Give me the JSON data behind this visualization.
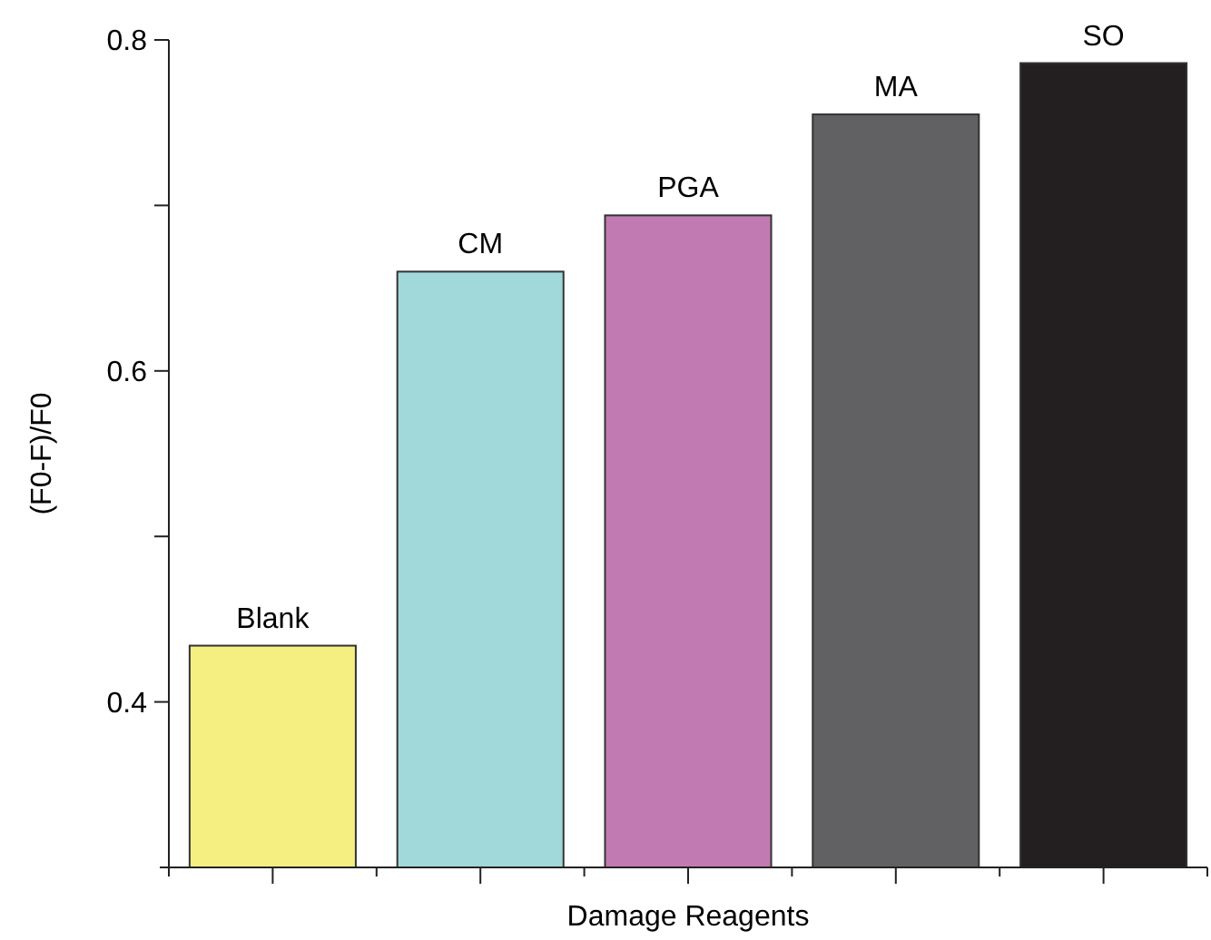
{
  "chart_data": {
    "type": "bar",
    "xlabel": "Damage Reagents",
    "ylabel": "(F0-F)/F0",
    "categories": [
      "Blank",
      "CM",
      "PGA",
      "MA",
      "SO"
    ],
    "values": [
      0.434,
      0.66,
      0.694,
      0.755,
      0.786
    ],
    "colors": [
      "#f5ef82",
      "#a1d9da",
      "#c27bb2",
      "#616163",
      "#231f20"
    ],
    "ylim": [
      0.3,
      0.8
    ],
    "yticks": [
      {
        "value": 0.4,
        "label": "0.4"
      },
      {
        "value": 0.5,
        "label": null
      },
      {
        "value": 0.6,
        "label": "0.6"
      },
      {
        "value": 0.7,
        "label": null
      },
      {
        "value": 0.8,
        "label": "0.8"
      }
    ],
    "grid": false
  }
}
